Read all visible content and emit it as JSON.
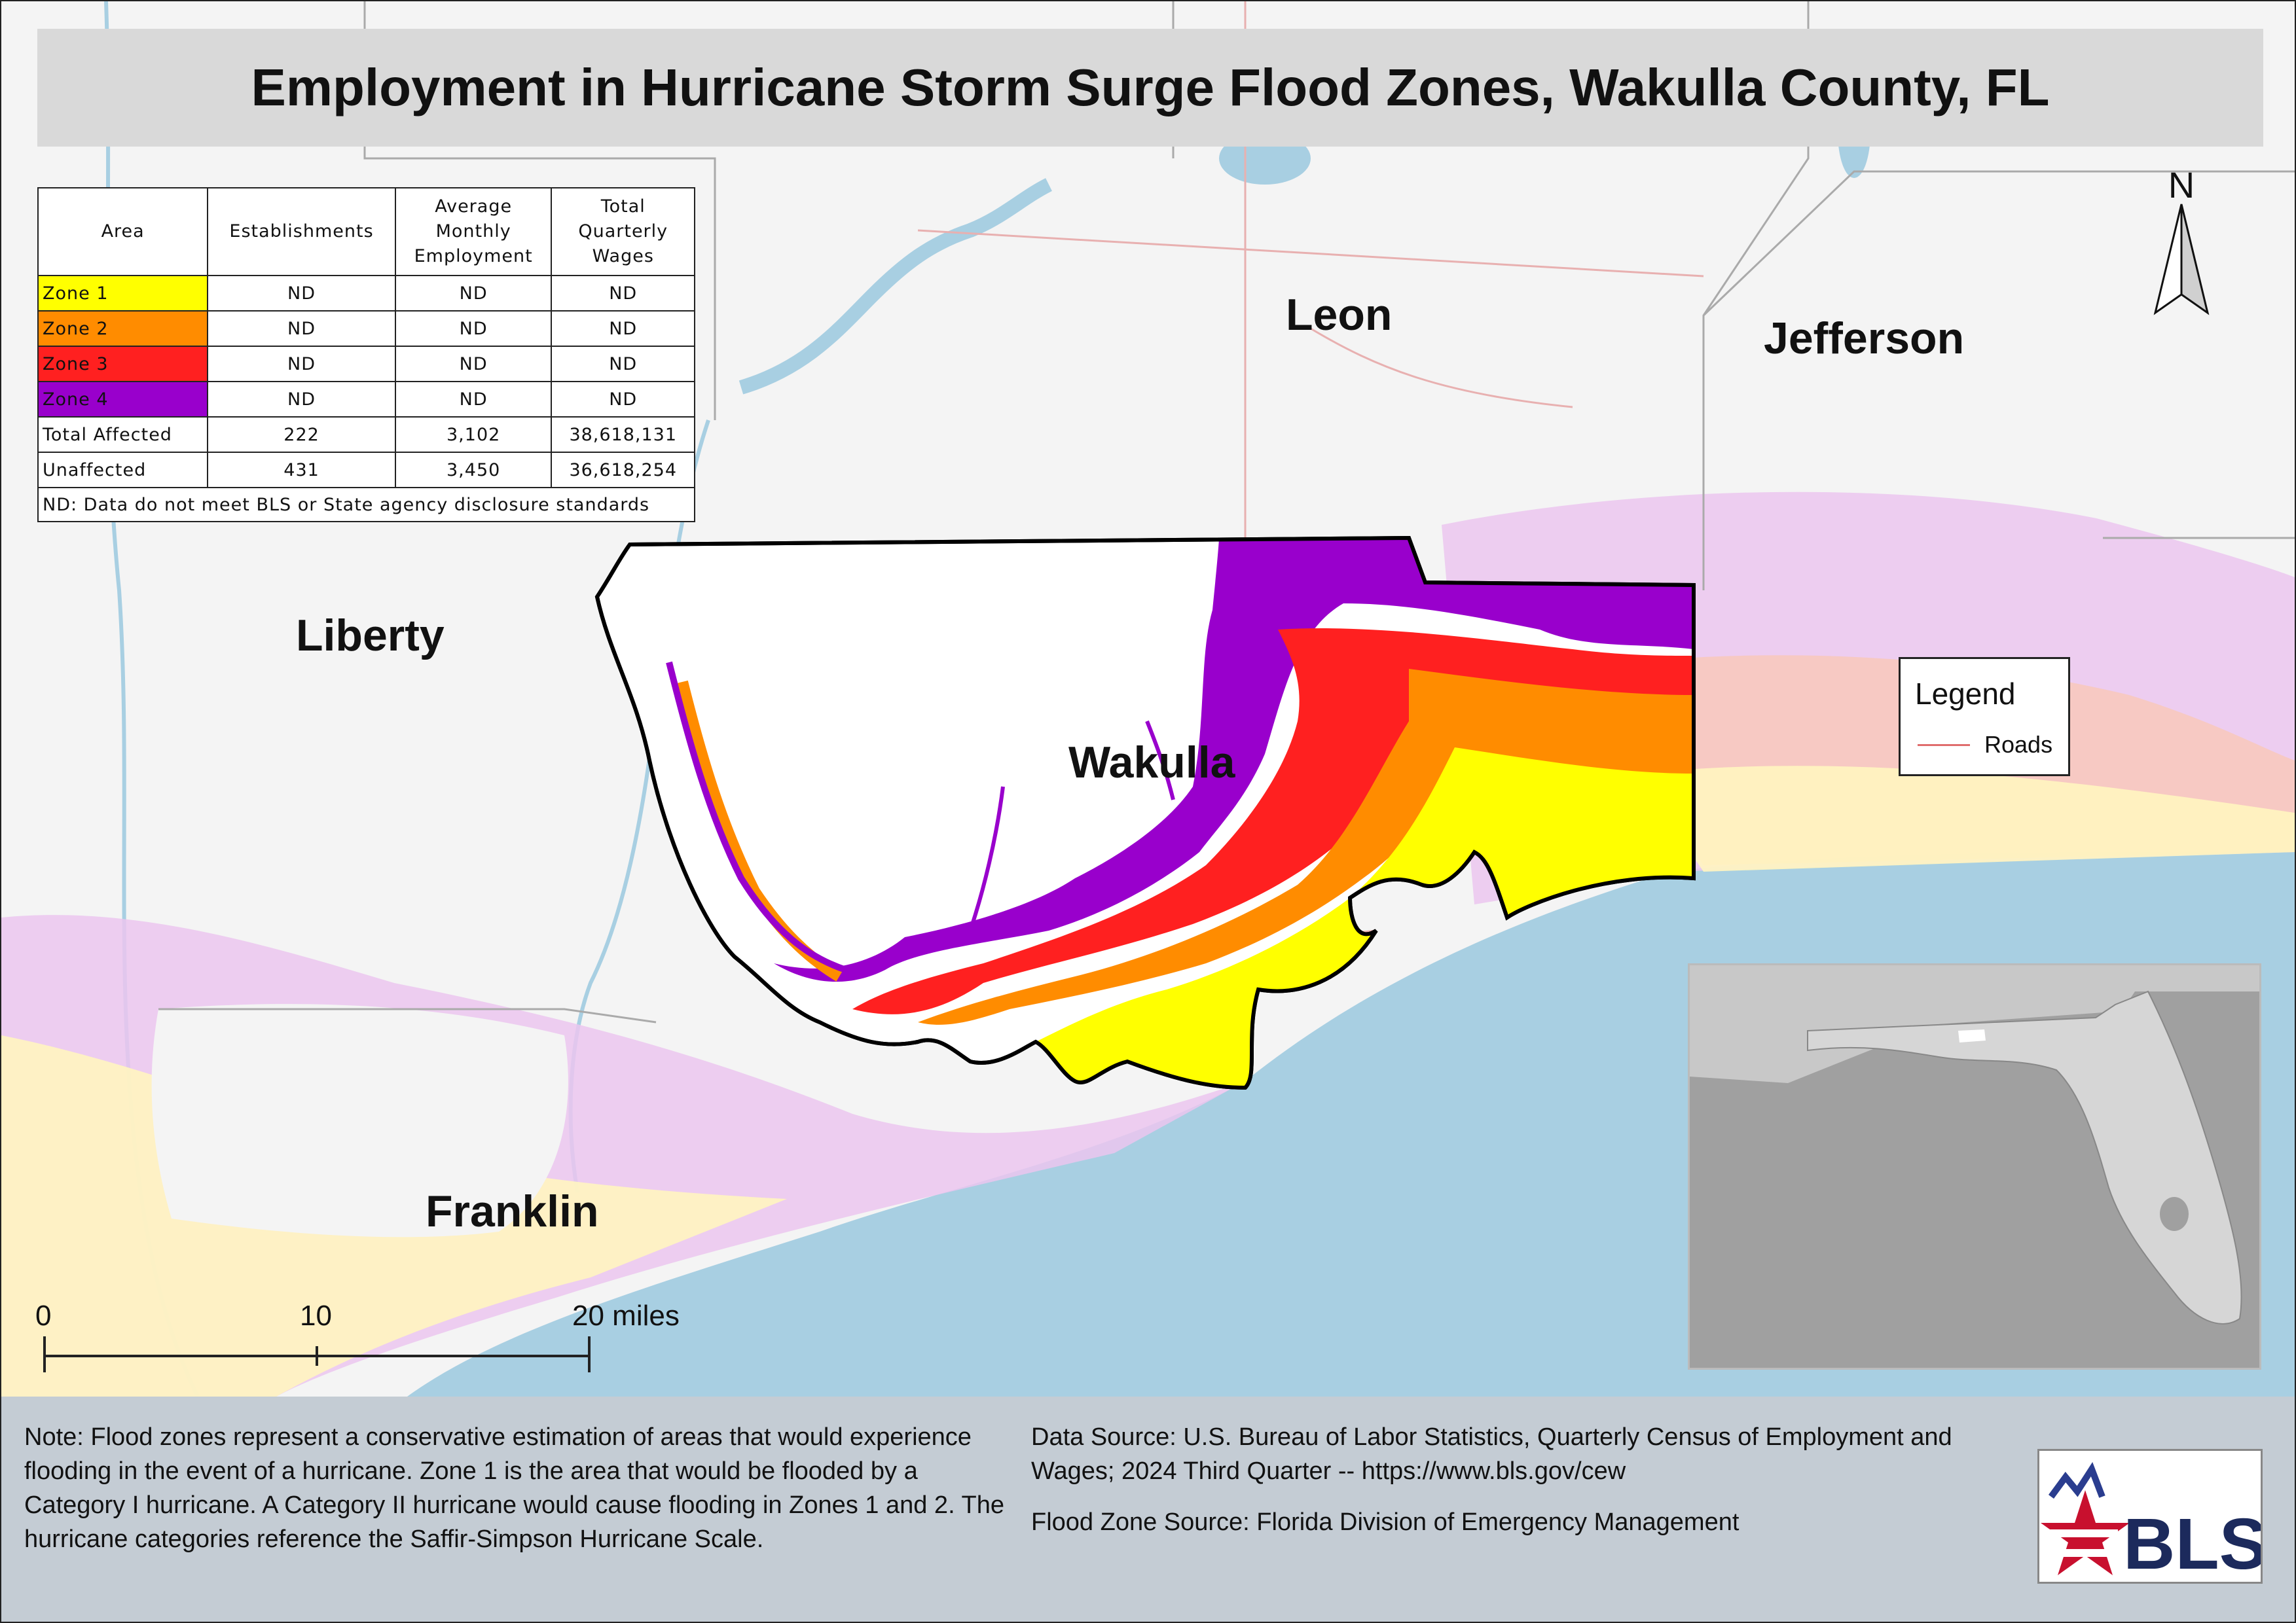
{
  "title": "Employment in Hurricane Storm Surge Flood Zones, Wakulla County, FL",
  "table": {
    "headers": {
      "area": "Area",
      "establishments": "Establishments",
      "employment": [
        "Average",
        "Monthly",
        "Employment"
      ],
      "wages": [
        "Total",
        "Quarterly",
        "Wages"
      ]
    },
    "rows": [
      {
        "area": "Zone 1",
        "color": "#ffff00",
        "establishments": "ND",
        "employment": "ND",
        "wages": "ND"
      },
      {
        "area": "Zone 2",
        "color": "#ff8c00",
        "establishments": "ND",
        "employment": "ND",
        "wages": "ND"
      },
      {
        "area": "Zone 3",
        "color": "#ff2020",
        "establishments": "ND",
        "employment": "ND",
        "wages": "ND"
      },
      {
        "area": "Zone 4",
        "color": "#9900cc",
        "establishments": "ND",
        "employment": "ND",
        "wages": "ND"
      },
      {
        "area": "Total Affected",
        "color": "#ffffff",
        "establishments": "222",
        "employment": "3,102",
        "wages": "38,618,131"
      },
      {
        "area": "Unaffected",
        "color": "#ffffff",
        "establishments": "431",
        "employment": "3,450",
        "wages": "36,618,254"
      }
    ],
    "note": "ND: Data do not meet BLS or State agency disclosure standards"
  },
  "counties": {
    "leon": "Leon",
    "jefferson": "Jefferson",
    "liberty": "Liberty",
    "wakulla": "Wakulla",
    "franklin": "Franklin"
  },
  "north_label": "N",
  "legend": {
    "title": "Legend",
    "roads_label": "Roads",
    "roads_color": "#e06d6d"
  },
  "scale": {
    "ticks": [
      "0",
      "10",
      "20 miles"
    ]
  },
  "footer": {
    "note": "Note: Flood zones represent a conservative estimation of areas that would experience flooding in the event of a hurricane. Zone 1 is the area that would be flooded by a Category I hurricane. A Category II hurricane would cause flooding in Zones 1 and 2. The hurricane categories reference the Saffir-Simpson Hurricane Scale.",
    "data_source": "Data Source: U.S. Bureau of Labor Statistics, Quarterly Census of Employment and Wages; 2024 Third Quarter -- https://www.bls.gov/cew",
    "flood_source": "Flood Zone Source: Florida Division of Emergency Management"
  },
  "logo": {
    "text": "BLS"
  },
  "colors": {
    "water": "#a8cfe2",
    "land": "#f4f4f4",
    "zone1": "#ffff00",
    "zone2": "#ff8c00",
    "zone3": "#ff2020",
    "zone4": "#9900cc"
  }
}
